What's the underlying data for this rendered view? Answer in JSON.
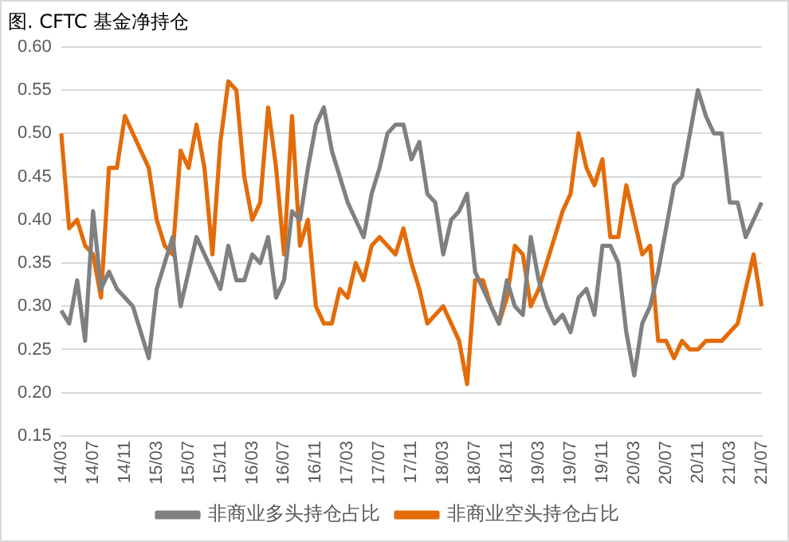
{
  "chart_data": {
    "type": "line",
    "title": "图. CFTC 基金净持仓",
    "categories": [
      "14/03",
      null,
      null,
      null,
      "14/07",
      null,
      null,
      null,
      "14/11",
      null,
      null,
      null,
      "15/03",
      null,
      null,
      null,
      "15/07",
      null,
      null,
      null,
      "15/11",
      null,
      null,
      null,
      "16/03",
      null,
      null,
      null,
      "16/07",
      null,
      null,
      null,
      "16/11",
      null,
      null,
      null,
      "17/03",
      null,
      null,
      null,
      "17/07",
      null,
      null,
      null,
      "17/11",
      null,
      null,
      null,
      "18/03",
      null,
      null,
      null,
      "18/07",
      null,
      null,
      null,
      "18/11",
      null,
      null,
      null,
      "19/03",
      null,
      null,
      null,
      "19/07",
      null,
      null,
      null,
      "19/11",
      null,
      null,
      null,
      "20/03",
      null,
      null,
      null,
      "20/07",
      null,
      null,
      null,
      "20/11",
      null,
      null,
      null,
      "21/03",
      null,
      null,
      null,
      "21/07"
    ],
    "series": [
      {
        "name": "非商业多头持仓占比",
        "color": "#808080",
        "values": [
          0.295,
          0.28,
          0.33,
          0.26,
          0.41,
          0.32,
          0.34,
          0.32,
          0.31,
          0.3,
          0.27,
          0.24,
          0.32,
          0.35,
          0.38,
          0.3,
          0.34,
          0.38,
          0.36,
          0.34,
          0.32,
          0.37,
          0.33,
          0.33,
          0.36,
          0.35,
          0.38,
          0.31,
          0.33,
          0.41,
          0.4,
          0.46,
          0.51,
          0.53,
          0.48,
          0.45,
          0.42,
          0.4,
          0.38,
          0.43,
          0.46,
          0.5,
          0.51,
          0.51,
          0.47,
          0.49,
          0.43,
          0.42,
          0.36,
          0.4,
          0.41,
          0.43,
          0.34,
          0.32,
          0.3,
          0.28,
          0.33,
          0.3,
          0.29,
          0.38,
          0.33,
          0.3,
          0.28,
          0.29,
          0.27,
          0.31,
          0.32,
          0.29,
          0.37,
          0.37,
          0.35,
          0.27,
          0.22,
          0.28,
          0.3,
          0.34,
          0.39,
          0.44,
          0.45,
          0.5,
          0.55,
          0.52,
          0.5,
          0.5,
          0.42,
          0.42,
          0.38,
          0.4,
          0.42
        ]
      },
      {
        "name": "非商业空头持仓占比",
        "color": "#e36c09",
        "values": [
          0.5,
          0.39,
          0.4,
          0.37,
          0.36,
          0.31,
          0.46,
          0.46,
          0.52,
          0.5,
          0.48,
          0.46,
          0.4,
          0.37,
          0.36,
          0.48,
          0.46,
          0.51,
          0.46,
          0.36,
          0.49,
          0.56,
          0.55,
          0.45,
          0.4,
          0.42,
          0.53,
          0.46,
          0.36,
          0.52,
          0.37,
          0.4,
          0.3,
          0.28,
          0.28,
          0.32,
          0.31,
          0.35,
          0.33,
          0.37,
          0.38,
          0.37,
          0.36,
          0.39,
          0.35,
          0.32,
          0.28,
          0.29,
          0.3,
          0.28,
          0.26,
          0.21,
          0.33,
          0.33,
          0.3,
          0.28,
          0.31,
          0.37,
          0.36,
          0.3,
          0.32,
          0.35,
          0.38,
          0.41,
          0.43,
          0.5,
          0.46,
          0.44,
          0.47,
          0.38,
          0.38,
          0.44,
          0.4,
          0.36,
          0.37,
          0.26,
          0.26,
          0.24,
          0.26,
          0.25,
          0.25,
          0.26,
          0.26,
          0.26,
          0.27,
          0.28,
          0.32,
          0.36,
          0.3
        ]
      }
    ],
    "ylim": [
      0.15,
      0.6
    ],
    "yticks": [
      0.15,
      {
        "value": 0.2,
        "label": "0.20"
      },
      0.25,
      {
        "value": 0.3,
        "label": "0.30"
      },
      0.35,
      {
        "value": 0.4,
        "label": "0.40"
      },
      0.45,
      {
        "value": 0.5,
        "label": "0.50"
      },
      0.55,
      {
        "value": 0.6,
        "label": "0.60"
      }
    ],
    "grid": "y",
    "legend": "bottom",
    "marker": "none",
    "line_style": "solid"
  }
}
